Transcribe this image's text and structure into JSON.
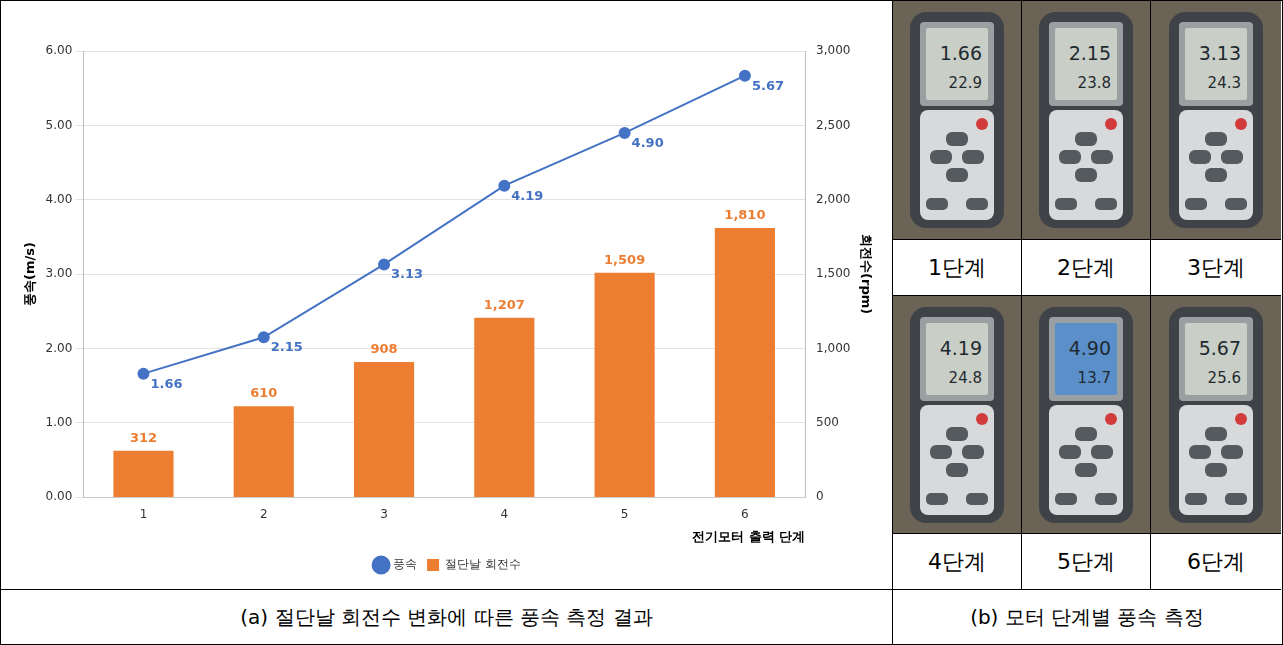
{
  "chart_data": {
    "type": "bar",
    "categories": [
      1,
      2,
      3,
      4,
      5,
      6
    ],
    "x_label": "전기모터 출력 단계",
    "y_label": "풍속(m/s)",
    "y2_label": "회전수(rpm)",
    "series": [
      {
        "name": "절단날 회전수",
        "type": "bar",
        "color": "#ed7d31",
        "axis": "y2",
        "values": [
          312,
          610,
          908,
          1207,
          1509,
          1810
        ],
        "value_labels": [
          "312",
          "610",
          "908",
          "1,207",
          "1,509",
          "1,810"
        ]
      },
      {
        "name": "풍속",
        "type": "line",
        "color": "#4472c4",
        "marker": "circle",
        "values": [
          1.66,
          2.15,
          3.13,
          4.19,
          4.9,
          5.67
        ],
        "value_labels": [
          "1.66",
          "2.15",
          "3.13",
          "4.19",
          "4.90",
          "5.67"
        ]
      }
    ],
    "ylim": [
      0,
      6
    ],
    "yticks": [
      {
        "value": 0,
        "label": "0.00"
      },
      {
        "value": 1,
        "label": "1.00"
      },
      {
        "value": 2,
        "label": "2.00"
      },
      {
        "value": 3,
        "label": "3.00"
      },
      {
        "value": 4,
        "label": "4.00"
      },
      {
        "value": 5,
        "label": "5.00"
      },
      {
        "value": 6,
        "label": "6.00"
      }
    ],
    "y2lim": [
      0,
      3000
    ],
    "y2ticks": [
      0,
      500,
      {
        "value": 1000,
        "label": "1,000"
      },
      {
        "value": 1500,
        "label": "1,500"
      },
      {
        "value": 2000,
        "label": "2,000"
      },
      {
        "value": 2500,
        "label": "2,500"
      },
      {
        "value": 3000,
        "label": "3,000"
      }
    ],
    "grid": true,
    "legend": "bottom",
    "data_labels": true
  },
  "captions": {
    "a": "(a) 절단날 회전수 변화에 따른 풍속 측정 결과",
    "b": "(b) 모터 단계별 풍속 측정"
  },
  "panel_b": {
    "cells": [
      {
        "label": "1단계",
        "display": [
          "1.66",
          "22.9"
        ]
      },
      {
        "label": "2단계",
        "display": [
          "2.15",
          "23.8"
        ]
      },
      {
        "label": "3단계",
        "display": [
          "3.13",
          "24.3"
        ]
      },
      {
        "label": "4단계",
        "display": [
          "4.19",
          "24.8"
        ]
      },
      {
        "label": "5단계",
        "display": [
          "4.90",
          "13.7"
        ]
      },
      {
        "label": "6단계",
        "display": [
          "5.67",
          "25.6"
        ]
      }
    ]
  }
}
